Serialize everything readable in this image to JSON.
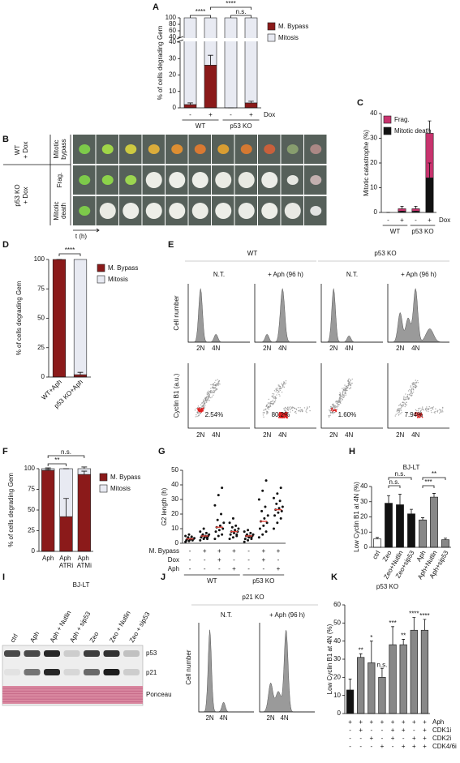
{
  "panel_labels": [
    "A",
    "B",
    "C",
    "D",
    "E",
    "F",
    "G",
    "H",
    "I",
    "J",
    "K"
  ],
  "panel_b": {
    "groups": [
      [
        "WT",
        "+ Dox"
      ],
      [
        "p53 KO",
        "+ Dox"
      ]
    ],
    "events": [
      [
        "Mitotic",
        "bypass"
      ],
      [
        "Frag."
      ],
      [
        "Mitotic",
        "death"
      ]
    ],
    "time_label": "t (h)"
  },
  "panel_e": {
    "groups": [
      "WT",
      "p53 KO"
    ],
    "conditions": [
      "N.T.",
      "+ Aph (96 h)",
      "N.T.",
      "+ Aph (96 h)"
    ],
    "ylabels": [
      "Cell number",
      "Cyclin B1 (a.u.)"
    ],
    "x_labels": [
      "2N",
      "4N"
    ],
    "percentages": [
      "2.54%",
      "80.2%",
      "1.60%",
      "7.94%"
    ]
  },
  "panel_i": {
    "title": "BJ-LT",
    "lanes": [
      "ctrl",
      "Aph",
      "Aph + Nutlin",
      "Aph + sip53",
      "Zeo",
      "Zeo + Nutlin",
      "Zeo + sip53"
    ],
    "bands": [
      "p53",
      "p21",
      "Ponceau"
    ]
  },
  "panel_j": {
    "title": "p21 KO",
    "conditions": [
      "N.T.",
      "+ Aph (96 h)"
    ],
    "ylabel": "Cell number",
    "x_labels": [
      "2N",
      "4N"
    ]
  },
  "chart_data": [
    {
      "type": "stacked_bar",
      "ylabel": "% of cells degrading Gem",
      "segments": [
        {
          "lim": [
            0,
            40
          ],
          "ticks": [
            0,
            10,
            20,
            30,
            40
          ]
        },
        {
          "lim": [
            40,
            100
          ],
          "ticks": [
            40,
            60,
            80,
            100
          ]
        }
      ],
      "series": [
        {
          "name": "M. Bypass",
          "color": "#8b1a1a",
          "values": [
            2,
            26,
            0,
            3
          ],
          "errors": [
            1,
            6,
            0,
            1
          ]
        },
        {
          "name": "Mitosis",
          "color": "#e8eaf2",
          "values": [
            98,
            74,
            100,
            97
          ]
        }
      ],
      "condition_rows": [
        {
          "name": "Dox",
          "values": [
            "-",
            "+",
            "-",
            "+"
          ]
        }
      ],
      "groups": [
        {
          "label": "WT",
          "span": [
            0,
            1
          ]
        },
        {
          "label": "p53 KO",
          "span": [
            2,
            3
          ]
        }
      ],
      "annotations": [
        {
          "text": "****",
          "between": [
            0,
            1
          ]
        },
        {
          "text": "****",
          "between": [
            1,
            3
          ]
        },
        {
          "text": "n.s.",
          "between": [
            2,
            3
          ]
        }
      ],
      "legend": "right"
    },
    {
      "type": "stacked_bar",
      "ylabel": "Mitotic catastrophe (%)",
      "ylim": [
        0,
        40
      ],
      "yticks": [
        0,
        10,
        20,
        30,
        40
      ],
      "series": [
        {
          "name": "Mitotic death",
          "color": "#111111",
          "values": [
            0,
            0.5,
            0.5,
            14
          ],
          "errors": [
            0,
            0,
            0,
            6
          ]
        },
        {
          "name": "Frag.",
          "color": "#c8336e",
          "values": [
            0,
            1,
            1,
            18
          ],
          "errors": [
            0,
            1,
            1,
            5
          ]
        }
      ],
      "condition_rows": [
        {
          "name": "Dox",
          "values": [
            "-",
            "+",
            "-",
            "+"
          ]
        }
      ],
      "groups": [
        {
          "label": "WT",
          "span": [
            0,
            1
          ]
        },
        {
          "label": "p53 KO",
          "span": [
            2,
            3
          ]
        }
      ],
      "legend": "upper left",
      "legend_reversed": true
    },
    {
      "type": "stacked_bar",
      "ylabel": "% of cells degrading Gem",
      "ylim": [
        0,
        100
      ],
      "yticks": [
        0,
        25,
        50,
        75,
        100
      ],
      "categories": [
        "WT+Aph",
        "p53 KO+Aph"
      ],
      "series": [
        {
          "name": "M. Bypass",
          "color": "#8b1a1a",
          "values": [
            100,
            2
          ],
          "errors": [
            0,
            2
          ]
        },
        {
          "name": "Mitosis",
          "color": "#e8eaf2",
          "values": [
            0,
            98
          ]
        }
      ],
      "annotations": [
        {
          "text": "****",
          "between": [
            0,
            1
          ]
        }
      ],
      "legend": "right"
    },
    {
      "type": "stacked_bar",
      "ylabel": "% of cells degrading Gem",
      "ylim": [
        0,
        100
      ],
      "yticks": [
        0,
        25,
        50,
        75,
        100
      ],
      "categories": [
        "Aph",
        "Aph ATRi",
        "Aph ATMi"
      ],
      "series": [
        {
          "name": "M. Bypass",
          "color": "#8b1a1a",
          "values": [
            98,
            42,
            93
          ],
          "errors": [
            1,
            22,
            4
          ]
        },
        {
          "name": "Mitosis",
          "color": "#e8eaf2",
          "values": [
            2,
            58,
            7
          ],
          "errors": [
            1,
            0,
            2
          ]
        }
      ],
      "annotations": [
        {
          "text": "**",
          "between": [
            0,
            1
          ]
        },
        {
          "text": "n.s.",
          "between": [
            0,
            2
          ]
        }
      ],
      "legend": "right"
    },
    {
      "type": "strip",
      "ylabel": "G2 length (h)",
      "ylim": [
        0,
        50
      ],
      "yticks": [
        0,
        10,
        20,
        30,
        40,
        50
      ],
      "color": "#111111",
      "median_color": "#e0443a",
      "values": [
        [
          1,
          1.5,
          2,
          2,
          2.5,
          3,
          3,
          3,
          3.5,
          4,
          4.5,
          5,
          6,
          2.5
        ],
        [
          2,
          3,
          3,
          4,
          4,
          5,
          5,
          5,
          6,
          6,
          7,
          8,
          10,
          4
        ],
        [
          3,
          5,
          6,
          8,
          9,
          10,
          11,
          12,
          14,
          16,
          20,
          26,
          33,
          38
        ],
        [
          3,
          4,
          5,
          6,
          7,
          8,
          8,
          9,
          10,
          11,
          12,
          14,
          17,
          6
        ],
        [
          1,
          2,
          3,
          3,
          4,
          5,
          5,
          5,
          6,
          6,
          7,
          8,
          9,
          4
        ],
        [
          4,
          6,
          8,
          10,
          12,
          14,
          15,
          17,
          19,
          22,
          25,
          30,
          36,
          43
        ],
        [
          10,
          14,
          17,
          19,
          21,
          22,
          23,
          24,
          25,
          27,
          29,
          31,
          34,
          38
        ]
      ],
      "medians": [
        3,
        5,
        11,
        8,
        5,
        15,
        23
      ],
      "condition_rows": [
        {
          "name": "M. Bypass",
          "values": [
            "-",
            "+",
            "+",
            "+",
            "-",
            "+",
            "+"
          ]
        },
        {
          "name": "Dox",
          "values": [
            "-",
            "-",
            "+",
            "-",
            "-",
            "+",
            "-"
          ]
        },
        {
          "name": "Aph",
          "values": [
            "-",
            "-",
            "-",
            "+",
            "-",
            "-",
            "+"
          ]
        }
      ],
      "groups": [
        {
          "label": "WT",
          "span": [
            0,
            3
          ]
        },
        {
          "label": "p53 KO",
          "span": [
            4,
            6
          ]
        }
      ]
    },
    {
      "type": "bar",
      "title": "BJ-LT",
      "ylabel": "Low Cyclin B1 at 4N (%)",
      "ylim": [
        0,
        40
      ],
      "yticks": [
        0,
        10,
        20,
        30,
        40
      ],
      "categories": [
        "ctrl",
        "Zeo",
        "Zeo+Nutlin",
        "Zeo+sip53",
        "Aph",
        "Aph+Nutlin",
        "Aph+sip53"
      ],
      "values": [
        5.5,
        29,
        28,
        22,
        18,
        33,
        5
      ],
      "errors": [
        1,
        5,
        7,
        3,
        1.5,
        2.5,
        1
      ],
      "colors": [
        "#ffffff",
        "#111111",
        "#111111",
        "#111111",
        "#888888",
        "#888888",
        "#888888"
      ],
      "annotations": [
        {
          "text": "n.s.",
          "between": [
            1,
            2
          ]
        },
        {
          "text": "n.s.",
          "between": [
            1,
            3
          ]
        },
        {
          "text": "***",
          "between": [
            4,
            5
          ]
        },
        {
          "text": "**",
          "between": [
            4,
            6
          ]
        }
      ]
    },
    {
      "type": "bar",
      "title": "p53 KO",
      "ylabel": "Low Cyclin B1 at 4N (%)",
      "ylim": [
        0,
        60
      ],
      "yticks": [
        0,
        10,
        20,
        30,
        40,
        50,
        60
      ],
      "values": [
        13,
        31,
        28,
        20,
        38,
        38,
        46,
        46
      ],
      "errors": [
        6,
        2,
        12,
        5,
        10,
        3,
        7,
        6
      ],
      "colors": [
        "#111111",
        "#888888",
        "#888888",
        "#888888",
        "#888888",
        "#888888",
        "#888888",
        "#888888"
      ],
      "significance": [
        null,
        "**",
        "*",
        "n.s.",
        "***",
        "**",
        "****",
        "****"
      ],
      "condition_rows": [
        {
          "name": "Aph",
          "values": [
            "+",
            "+",
            "+",
            "+",
            "+",
            "+",
            "+",
            "+"
          ]
        },
        {
          "name": "CDK1i",
          "values": [
            "-",
            "+",
            "-",
            "-",
            "+",
            "+",
            "-",
            "+"
          ]
        },
        {
          "name": "CDK2i",
          "values": [
            "-",
            "-",
            "+",
            "-",
            "+",
            "-",
            "+",
            "+"
          ]
        },
        {
          "name": "CDK4/6i",
          "values": [
            "-",
            "-",
            "-",
            "+",
            "-",
            "+",
            "+",
            "+"
          ]
        }
      ]
    }
  ]
}
